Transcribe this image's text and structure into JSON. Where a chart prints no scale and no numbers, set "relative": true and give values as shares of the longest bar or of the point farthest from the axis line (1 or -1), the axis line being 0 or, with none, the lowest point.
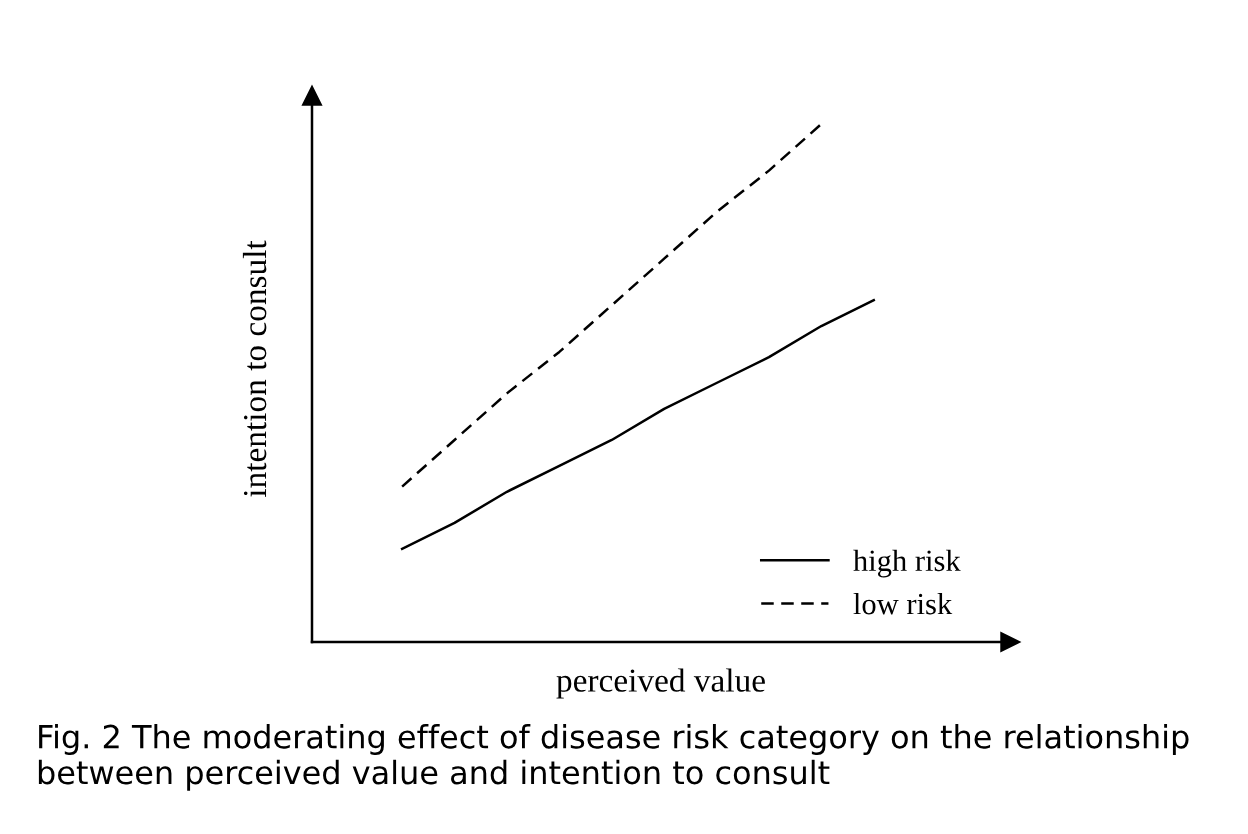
{
  "chart_data": {
    "type": "line",
    "relative": true,
    "xlabel": "perceived value",
    "ylabel": "intention to consult",
    "categories": [
      null,
      null,
      null,
      null,
      null,
      null,
      null,
      null,
      null,
      null
    ],
    "series": [
      {
        "name": "high risk",
        "color": "#000000",
        "line_style": "solid",
        "values": [
          0.18,
          0.23,
          0.29,
          0.34,
          0.39,
          0.45,
          0.5,
          0.55,
          0.61,
          0.66
        ]
      },
      {
        "name": "low risk",
        "color": "#000000",
        "line_style": "dashed",
        "values": [
          0.3,
          0.39,
          0.48,
          0.56,
          0.65,
          0.74,
          0.83,
          0.91,
          1.0,
          null
        ]
      }
    ],
    "legend": "bottom right",
    "grid": false,
    "marker": "none",
    "annotations": [
      "Fig. 2 The moderating effect of disease risk category on the relationship between perceived value and intention to consult"
    ]
  }
}
